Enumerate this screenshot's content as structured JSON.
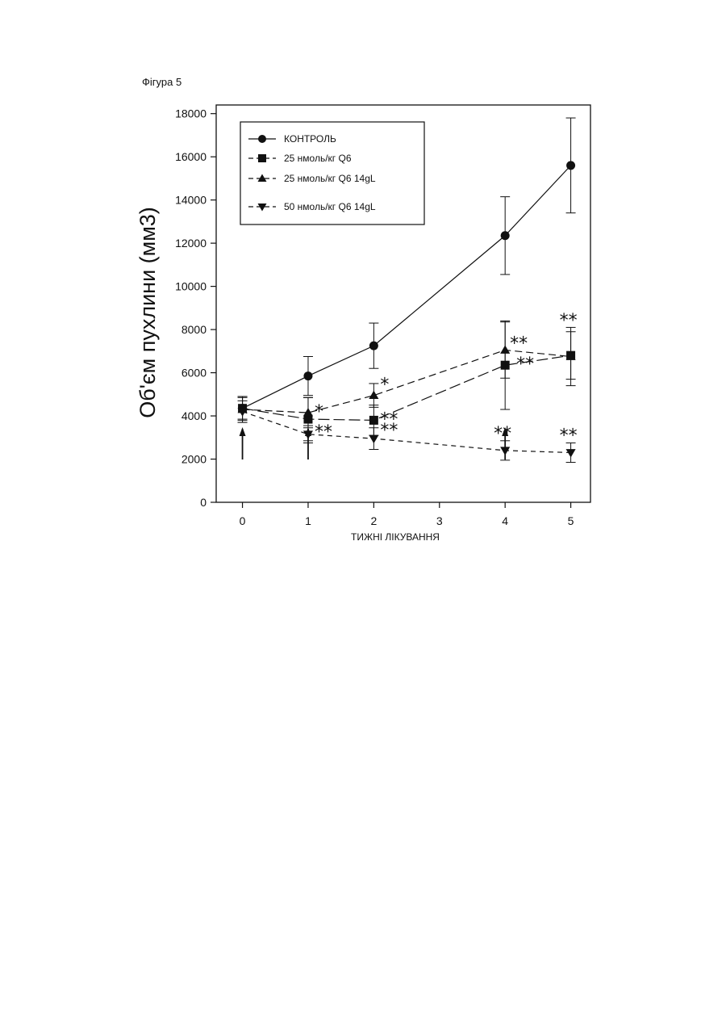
{
  "figure_label": "Фігура 5",
  "chart_data": {
    "type": "line",
    "xlabel": "ТИЖНІ ЛІКУВАННЯ",
    "ylabel": "Об'єм пухлини (мм3)",
    "xlim": [
      -0.4,
      5.3
    ],
    "ylim": [
      0,
      18400
    ],
    "xticks": [
      0,
      1,
      2,
      3,
      4,
      5
    ],
    "yticks": [
      0,
      2000,
      4000,
      6000,
      8000,
      10000,
      12000,
      14000,
      16000,
      18000
    ],
    "legend_position": "top-left",
    "grid": false,
    "series": [
      {
        "name": "КОНТРОЛЬ",
        "marker": "circle",
        "dash": "solid",
        "x": [
          0,
          1,
          2,
          4,
          5
        ],
        "y": [
          4350,
          5850,
          7250,
          12350,
          15600
        ],
        "err": [
          500,
          900,
          1050,
          1800,
          2200
        ],
        "sig": [
          "",
          "",
          "",
          "",
          ""
        ]
      },
      {
        "name": "25 нмоль/кг Q6",
        "marker": "square",
        "dash": "long",
        "x": [
          0,
          1,
          2,
          4,
          5
        ],
        "y": [
          4350,
          3850,
          3800,
          6350,
          6800
        ],
        "err": [
          550,
          1000,
          700,
          2050,
          1100
        ],
        "sig": [
          "",
          "",
          "**",
          "**",
          "**"
        ]
      },
      {
        "name": "25 нмоль/кг Q6 14gL",
        "marker": "triangle-up",
        "dash": "medium",
        "x": [
          0,
          1,
          2,
          4,
          5
        ],
        "y": [
          4300,
          4150,
          4950,
          7050,
          6750
        ],
        "err": [
          600,
          700,
          550,
          1300,
          1350
        ],
        "sig": [
          "",
          "*",
          "*",
          "**",
          ""
        ]
      },
      {
        "name": "50 нмоль/кг Q6 14gL",
        "marker": "triangle-down",
        "dash": "short",
        "x": [
          0,
          1,
          2,
          4,
          5
        ],
        "y": [
          4200,
          3150,
          2950,
          2400,
          2300
        ],
        "err": [
          500,
          400,
          500,
          450,
          450
        ],
        "sig": [
          "",
          "**",
          "**",
          "**",
          "**"
        ]
      }
    ],
    "treatment_arrows_x": [
      0,
      1,
      4
    ]
  }
}
